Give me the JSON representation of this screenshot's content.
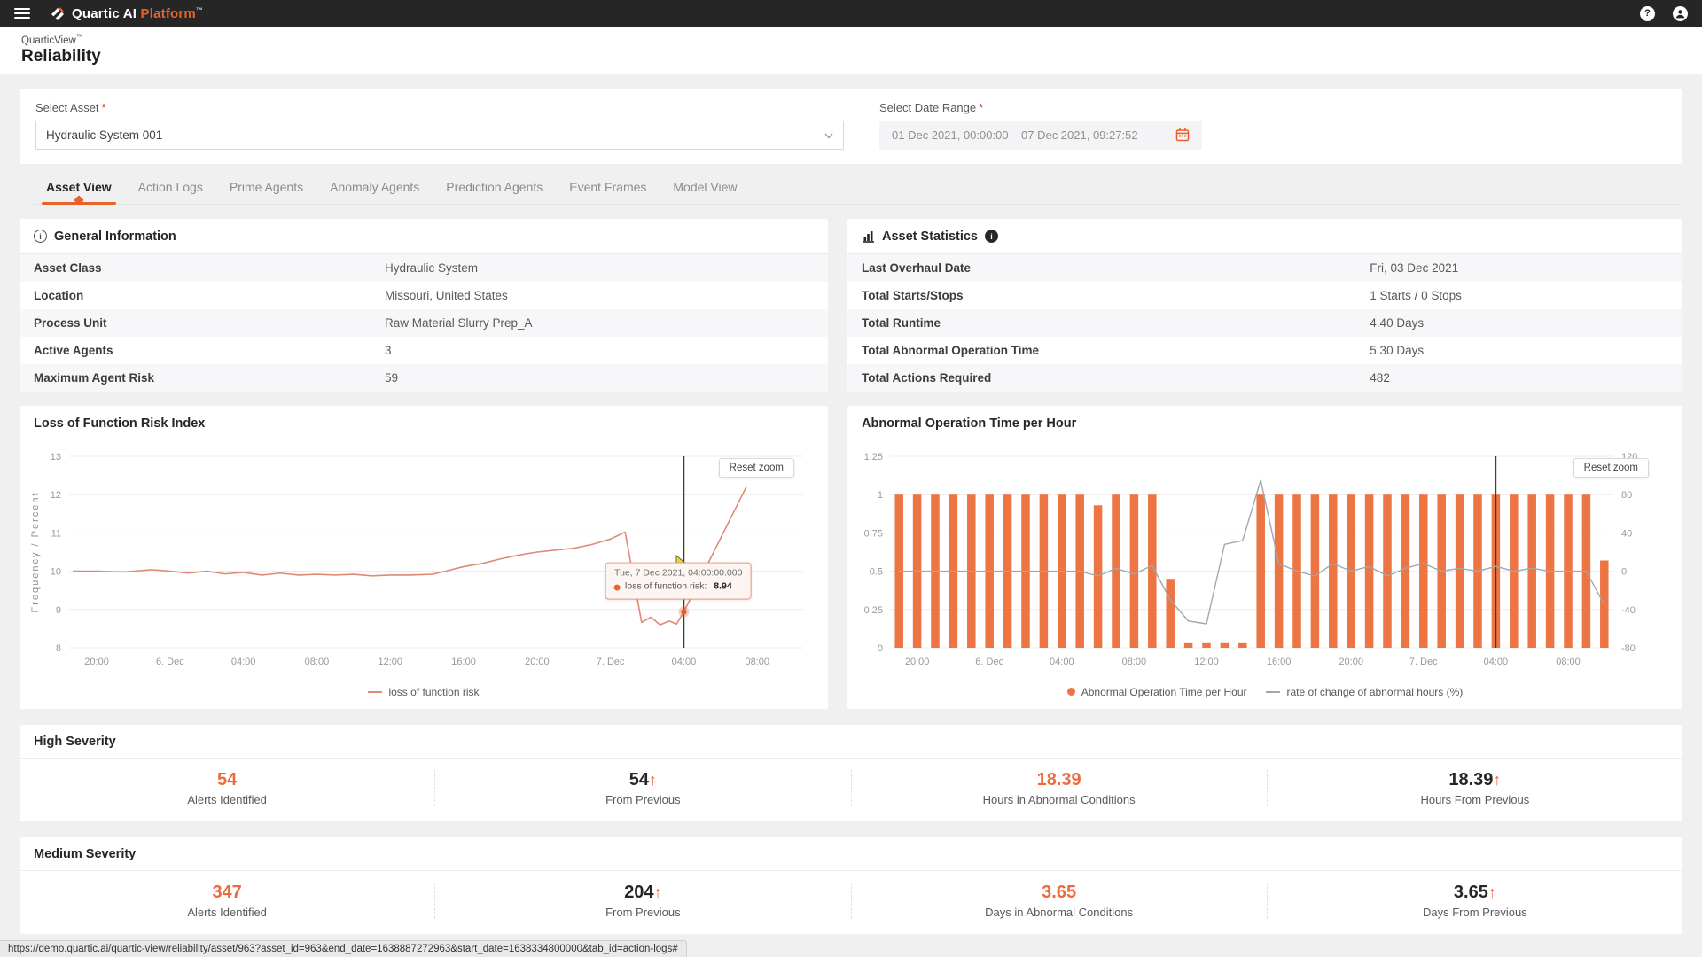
{
  "topbar": {
    "brand": "Quartic AI",
    "brand_accent": "Platform",
    "tm": "™",
    "help_glyph": "?"
  },
  "header": {
    "product": "QuarticView",
    "tm": "™",
    "title": "Reliability"
  },
  "filters": {
    "asset_label": "Select Asset",
    "required": "*",
    "asset_value": "Hydraulic System 001",
    "date_label": "Select Date Range",
    "date_value": "01 Dec 2021, 00:00:00 – 07 Dec 2021, 09:27:52"
  },
  "tabs": [
    {
      "label": "Asset View",
      "active": true
    },
    {
      "label": "Action Logs",
      "active": false
    },
    {
      "label": "Prime Agents",
      "active": false
    },
    {
      "label": "Anomaly Agents",
      "active": false
    },
    {
      "label": "Prediction Agents",
      "active": false
    },
    {
      "label": "Event Frames",
      "active": false
    },
    {
      "label": "Model View",
      "active": false
    }
  ],
  "general_info": {
    "title": "General Information",
    "info_icon": "i",
    "rows": [
      {
        "label": "Asset Class",
        "value": "Hydraulic System"
      },
      {
        "label": "Location",
        "value": "Missouri, United States"
      },
      {
        "label": "Process Unit",
        "value": "Raw Material Slurry Prep_A"
      },
      {
        "label": "Active Agents",
        "value": "3"
      },
      {
        "label": "Maximum Agent Risk",
        "value": "59"
      }
    ]
  },
  "asset_stats": {
    "title": "Asset Statistics",
    "info_icon": "i",
    "rows": [
      {
        "label": "Last Overhaul Date",
        "value": "Fri, 03 Dec 2021"
      },
      {
        "label": "Total Starts/Stops",
        "value": "1 Starts / 0 Stops"
      },
      {
        "label": "Total Runtime",
        "value": "4.40 Days"
      },
      {
        "label": "Total Abnormal Operation Time",
        "value": "5.30 Days"
      },
      {
        "label": "Total Actions Required",
        "value": "482"
      }
    ]
  },
  "chart_data": [
    {
      "type": "line",
      "title": "Loss of Function Risk Index",
      "ylabel": "Frequency / Percent",
      "ylim": [
        8,
        13
      ],
      "yticks": [
        13,
        12,
        11,
        10,
        9,
        8
      ],
      "xlim": [
        -1.5,
        38.5
      ],
      "x_unit": "hours from 05 Dec 2021 20:00",
      "xtick_pos": [
        0,
        4,
        8,
        12,
        16,
        20,
        24,
        28,
        32,
        36
      ],
      "xtick_labels": [
        "20:00",
        "6. Dec",
        "04:00",
        "08:00",
        "12:00",
        "16:00",
        "20:00",
        "7. Dec",
        "04:00",
        "08:00"
      ],
      "grid": true,
      "series": [
        {
          "name": "loss of function risk",
          "color": "#df8a74",
          "points": [
            [
              -1.3,
              10.0
            ],
            [
              0,
              10.0
            ],
            [
              1.5,
              9.98
            ],
            [
              3,
              10.04
            ],
            [
              4,
              10.0
            ],
            [
              5,
              9.95
            ],
            [
              6,
              10.0
            ],
            [
              7,
              9.93
            ],
            [
              8,
              9.97
            ],
            [
              9,
              9.9
            ],
            [
              10,
              9.95
            ],
            [
              11,
              9.9
            ],
            [
              12,
              9.92
            ],
            [
              13,
              9.9
            ],
            [
              14,
              9.92
            ],
            [
              15,
              9.88
            ],
            [
              16,
              9.9
            ],
            [
              17,
              9.9
            ],
            [
              18.3,
              9.92
            ],
            [
              19,
              10.0
            ],
            [
              20,
              10.12
            ],
            [
              21,
              10.2
            ],
            [
              22,
              10.32
            ],
            [
              23,
              10.42
            ],
            [
              24,
              10.5
            ],
            [
              25,
              10.55
            ],
            [
              26,
              10.6
            ],
            [
              27,
              10.7
            ],
            [
              28,
              10.84
            ],
            [
              28.8,
              11.02
            ],
            [
              29.7,
              8.66
            ],
            [
              30.2,
              8.8
            ],
            [
              30.7,
              8.6
            ],
            [
              31.2,
              8.7
            ],
            [
              31.6,
              8.62
            ],
            [
              32,
              8.94
            ],
            [
              35.4,
              12.2
            ]
          ]
        }
      ],
      "vline_x": 32,
      "vline_color": "#2d4a26",
      "marker": {
        "x": 32,
        "y": 8.94,
        "color": "#e45f35"
      },
      "tooltip": {
        "line1": "Tue, 7 Dec 2021, 04:00:00.000",
        "line2_label": "loss of function risk:",
        "line2_value": "8.94"
      },
      "reset_label": "Reset zoom",
      "legend": [
        {
          "label": "loss of function risk",
          "type": "line",
          "color": "#df8a74"
        }
      ],
      "legend_position": "bottom-center"
    },
    {
      "type": "bar+line",
      "title": "Abnormal Operation Time per Hour",
      "ylim_left": [
        0,
        1.25
      ],
      "yticks_left": [
        "1.25",
        "1",
        "0.75",
        "0.5",
        "0.25",
        "0"
      ],
      "ylim_right": [
        -80,
        120
      ],
      "yticks_right": [
        "120",
        "80",
        "40",
        "0",
        "-40",
        "-80"
      ],
      "xlim": [
        -1.5,
        38.5
      ],
      "x_unit": "hours from 05 Dec 2021 20:00",
      "xtick_pos": [
        0,
        4,
        8,
        12,
        16,
        20,
        24,
        28,
        32,
        36
      ],
      "xtick_labels": [
        "20:00",
        "6. Dec",
        "04:00",
        "08:00",
        "12:00",
        "16:00",
        "20:00",
        "7. Dec",
        "04:00",
        "08:00"
      ],
      "grid": true,
      "bars": {
        "name": "Abnormal Operation Time per Hour",
        "color": "#ed7443",
        "x_start": -1,
        "values": [
          1,
          1,
          1,
          1,
          1,
          1,
          1,
          1,
          1,
          1,
          1,
          0.93,
          1,
          1,
          1,
          0.45,
          0.03,
          0.03,
          0.03,
          0.03,
          1,
          1,
          1,
          1,
          1,
          1,
          1,
          1,
          1,
          1,
          1,
          1,
          1,
          1,
          1,
          1,
          1,
          1,
          1,
          0.57
        ]
      },
      "line": {
        "name": "rate of change of abnormal hours (%)",
        "color": "#9fa8ad",
        "x_start": -1,
        "values": [
          0,
          0,
          0,
          0,
          0,
          0,
          0,
          0,
          0,
          0,
          0,
          -5,
          3,
          -3,
          6,
          -30,
          -52,
          -55,
          28,
          32,
          95,
          8,
          0,
          -5,
          8,
          0,
          5,
          -5,
          3,
          8,
          0,
          3,
          0,
          5,
          0,
          3,
          0,
          0,
          0,
          -35
        ]
      },
      "vline_x": 32,
      "vline_color": "#2d4a26",
      "reset_label": "Reset zoom",
      "legend": [
        {
          "label": "Abnormal Operation Time per Hour",
          "type": "dot",
          "color": "#ed7443"
        },
        {
          "label": "rate of change of abnormal hours (%)",
          "type": "line",
          "color": "#9fa8ad"
        }
      ],
      "legend_position": "bottom-center"
    }
  ],
  "severity_high": {
    "title": "High Severity",
    "stats": [
      {
        "value": "54",
        "accent": true,
        "arrow": false,
        "label": "Alerts Identified"
      },
      {
        "value": "54",
        "accent": false,
        "arrow": true,
        "label": "From Previous"
      },
      {
        "value": "18.39",
        "accent": true,
        "arrow": false,
        "label": "Hours in Abnormal Conditions"
      },
      {
        "value": "18.39",
        "accent": false,
        "arrow": true,
        "label": "Hours From Previous"
      }
    ]
  },
  "severity_medium": {
    "title": "Medium Severity",
    "stats": [
      {
        "value": "347",
        "accent": true,
        "arrow": false,
        "label": "Alerts Identified"
      },
      {
        "value": "204",
        "accent": false,
        "arrow": true,
        "label": "From Previous"
      },
      {
        "value": "3.65",
        "accent": true,
        "arrow": false,
        "label": "Days in Abnormal Conditions"
      },
      {
        "value": "3.65",
        "accent": false,
        "arrow": true,
        "label": "Days From Previous"
      }
    ]
  },
  "statusbar": {
    "url": "https://demo.quartic.ai/quartic-view/reliability/asset/963?asset_id=963&end_date=1638887272963&start_date=1638334800000&tab_id=action-logs#"
  },
  "colors": {
    "accent": "#e8632c",
    "bars": "#ed7443",
    "risk_line": "#df8a74",
    "rate_line": "#9fa8ad",
    "vline_green": "#2d4a26",
    "stat_accent": "#ed6a3c",
    "topbar_bg": "#262626",
    "page_bg": "#f0f0f0"
  }
}
